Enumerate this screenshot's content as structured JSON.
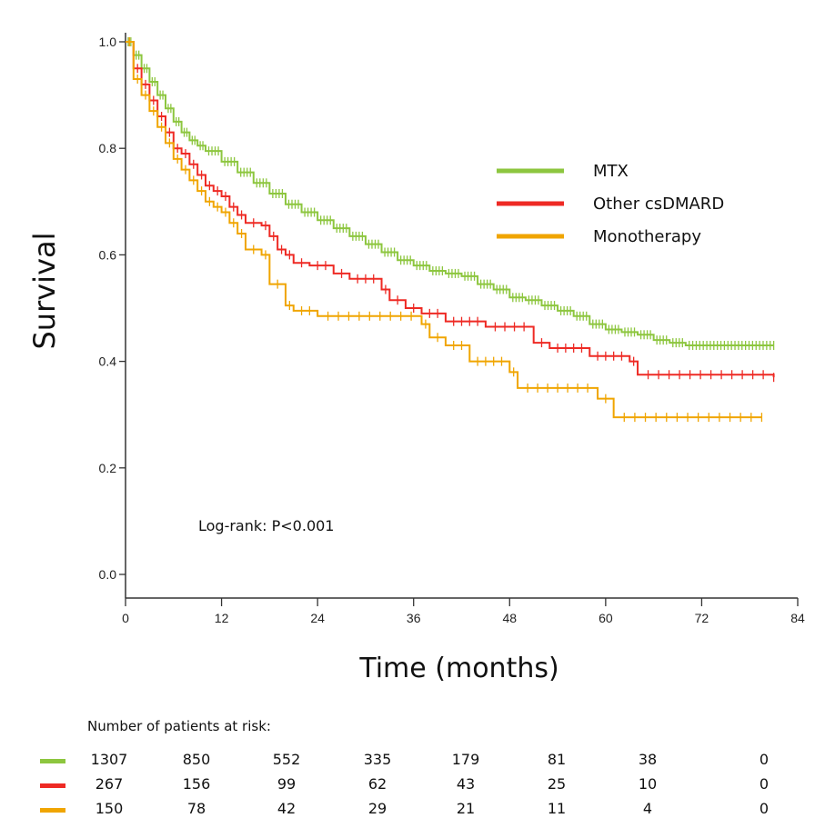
{
  "chart_data": {
    "type": "line",
    "subtype": "kaplan-meier",
    "title": "",
    "xlabel": "Time (months)",
    "ylabel": "Survival",
    "xlim": [
      0,
      84
    ],
    "ylim": [
      0,
      1.0
    ],
    "xticks": [
      0,
      12,
      24,
      36,
      48,
      60,
      72,
      84
    ],
    "yticks": [
      "0.0",
      "0.2",
      "0.4",
      "0.6",
      "0.8",
      "1.0"
    ],
    "grid": false,
    "legend_position": "right-center",
    "annotation": "Log-rank: P<0.001",
    "series": [
      {
        "name": "MTX",
        "color": "#8dc63f",
        "steps": [
          [
            0,
            1.0
          ],
          [
            1,
            0.975
          ],
          [
            2,
            0.95
          ],
          [
            3,
            0.925
          ],
          [
            4,
            0.9
          ],
          [
            5,
            0.875
          ],
          [
            6,
            0.85
          ],
          [
            7,
            0.83
          ],
          [
            8,
            0.815
          ],
          [
            9,
            0.805
          ],
          [
            10,
            0.795
          ],
          [
            12,
            0.775
          ],
          [
            14,
            0.755
          ],
          [
            16,
            0.735
          ],
          [
            18,
            0.715
          ],
          [
            20,
            0.695
          ],
          [
            22,
            0.68
          ],
          [
            24,
            0.665
          ],
          [
            26,
            0.65
          ],
          [
            28,
            0.635
          ],
          [
            30,
            0.62
          ],
          [
            32,
            0.605
          ],
          [
            34,
            0.59
          ],
          [
            36,
            0.58
          ],
          [
            38,
            0.57
          ],
          [
            40,
            0.565
          ],
          [
            42,
            0.56
          ],
          [
            44,
            0.545
          ],
          [
            46,
            0.535
          ],
          [
            48,
            0.52
          ],
          [
            50,
            0.515
          ],
          [
            52,
            0.505
          ],
          [
            54,
            0.495
          ],
          [
            56,
            0.485
          ],
          [
            58,
            0.47
          ],
          [
            60,
            0.46
          ],
          [
            62,
            0.455
          ],
          [
            64,
            0.45
          ],
          [
            66,
            0.44
          ],
          [
            68,
            0.435
          ],
          [
            70,
            0.43
          ],
          [
            81,
            0.43
          ]
        ]
      },
      {
        "name": "Other csDMARD",
        "color": "#ee2a24",
        "steps": [
          [
            0,
            1.0
          ],
          [
            1,
            0.95
          ],
          [
            2,
            0.92
          ],
          [
            3,
            0.89
          ],
          [
            4,
            0.86
          ],
          [
            5,
            0.83
          ],
          [
            6,
            0.8
          ],
          [
            7,
            0.79
          ],
          [
            8,
            0.77
          ],
          [
            9,
            0.75
          ],
          [
            10,
            0.73
          ],
          [
            11,
            0.72
          ],
          [
            12,
            0.71
          ],
          [
            13,
            0.69
          ],
          [
            14,
            0.675
          ],
          [
            15,
            0.66
          ],
          [
            17,
            0.655
          ],
          [
            18,
            0.635
          ],
          [
            19,
            0.61
          ],
          [
            20,
            0.6
          ],
          [
            21,
            0.585
          ],
          [
            23,
            0.58
          ],
          [
            26,
            0.565
          ],
          [
            28,
            0.555
          ],
          [
            32,
            0.535
          ],
          [
            33,
            0.515
          ],
          [
            35,
            0.5
          ],
          [
            37,
            0.49
          ],
          [
            40,
            0.475
          ],
          [
            45,
            0.465
          ],
          [
            51,
            0.435
          ],
          [
            53,
            0.425
          ],
          [
            58,
            0.41
          ],
          [
            63,
            0.4
          ],
          [
            64,
            0.375
          ],
          [
            81,
            0.37
          ]
        ]
      },
      {
        "name": "Monotherapy",
        "color": "#f0a500",
        "steps": [
          [
            0,
            1.0
          ],
          [
            1,
            0.93
          ],
          [
            2,
            0.9
          ],
          [
            3,
            0.87
          ],
          [
            4,
            0.84
          ],
          [
            5,
            0.81
          ],
          [
            6,
            0.78
          ],
          [
            7,
            0.76
          ],
          [
            8,
            0.74
          ],
          [
            9,
            0.72
          ],
          [
            10,
            0.7
          ],
          [
            11,
            0.69
          ],
          [
            12,
            0.68
          ],
          [
            13,
            0.66
          ],
          [
            14,
            0.64
          ],
          [
            15,
            0.61
          ],
          [
            17,
            0.6
          ],
          [
            18,
            0.545
          ],
          [
            20,
            0.505
          ],
          [
            21,
            0.495
          ],
          [
            24,
            0.485
          ],
          [
            37,
            0.47
          ],
          [
            38,
            0.445
          ],
          [
            40,
            0.43
          ],
          [
            43,
            0.4
          ],
          [
            48,
            0.38
          ],
          [
            49,
            0.35
          ],
          [
            59,
            0.33
          ],
          [
            61,
            0.295
          ],
          [
            79.5,
            0.295
          ]
        ]
      }
    ]
  },
  "risk_table": {
    "title": "Number of patients at risk:",
    "timepoints": [
      0,
      12,
      24,
      36,
      48,
      60,
      72,
      84
    ],
    "rows": [
      {
        "name": "MTX",
        "color": "#8dc63f",
        "values": [
          "1307",
          "850",
          "552",
          "335",
          "179",
          "81",
          "38",
          "0"
        ]
      },
      {
        "name": "Other csDMARD",
        "color": "#ee2a24",
        "values": [
          "267",
          "156",
          "99",
          "62",
          "43",
          "25",
          "10",
          "0"
        ]
      },
      {
        "name": "Monotherapy",
        "color": "#f0a500",
        "values": [
          "150",
          "78",
          "42",
          "29",
          "21",
          "11",
          "4",
          "0"
        ]
      }
    ]
  }
}
